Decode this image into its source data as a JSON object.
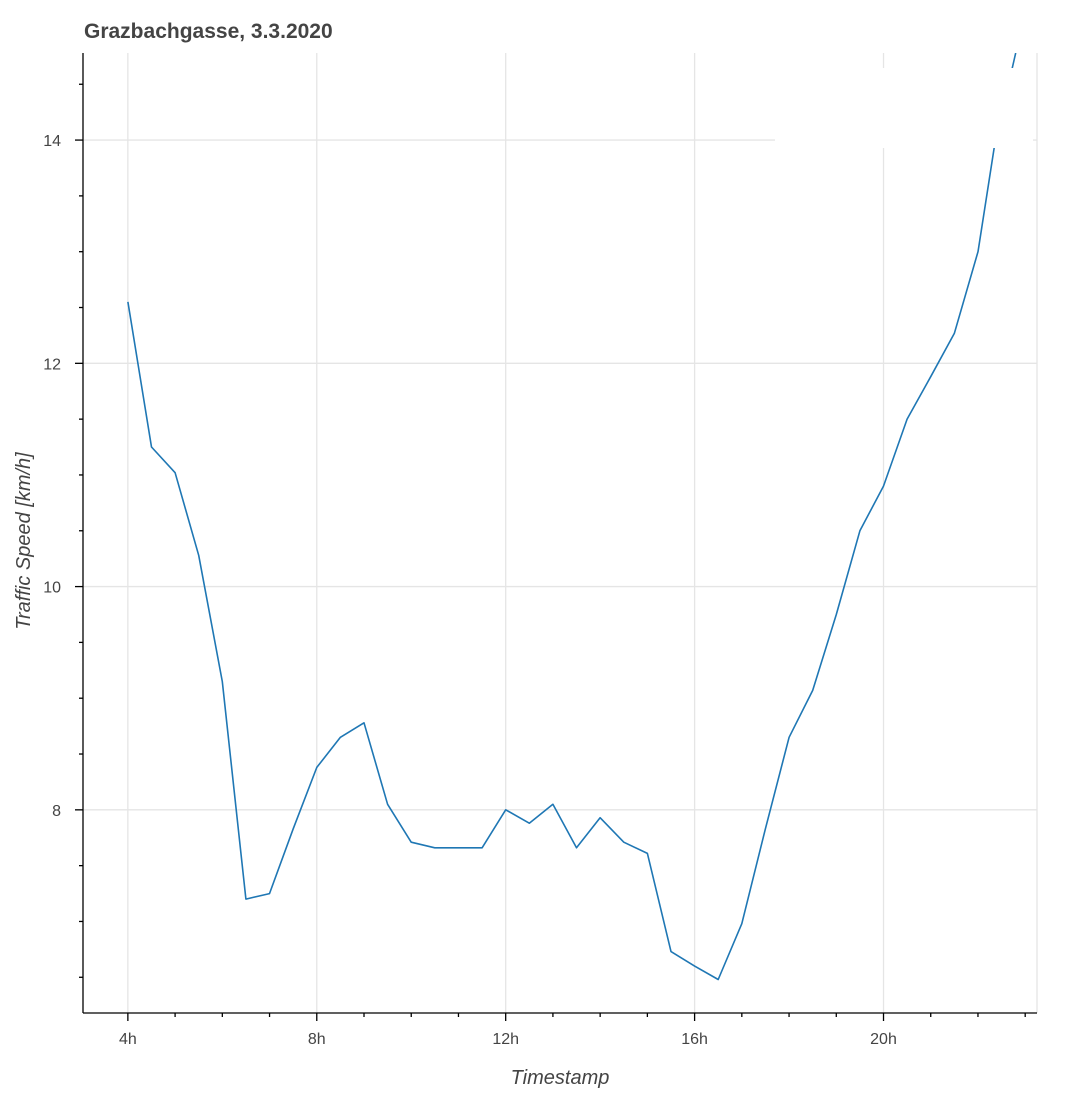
{
  "chart_data": {
    "type": "line",
    "title": "Grazbachgasse, 3.3.2020",
    "xlabel": "Timestamp",
    "ylabel": "Traffic Speed [km/h]",
    "xlim": [
      3.05,
      23.25
    ],
    "ylim": [
      6.18,
      14.78
    ],
    "x_ticks": [
      {
        "value": 4,
        "label": "4h"
      },
      {
        "value": 8,
        "label": "8h"
      },
      {
        "value": 12,
        "label": "12h"
      },
      {
        "value": 16,
        "label": "16h"
      },
      {
        "value": 20,
        "label": "20h"
      }
    ],
    "y_ticks": [
      {
        "value": 8,
        "label": "8"
      },
      {
        "value": 10,
        "label": "10"
      },
      {
        "value": 12,
        "label": "12"
      },
      {
        "value": 14,
        "label": "14"
      }
    ],
    "grid": true,
    "series": [
      {
        "color": "#1f77b4",
        "x": [
          4,
          4.5,
          5,
          5.5,
          6,
          6.5,
          7,
          7.5,
          8,
          8.5,
          9,
          9.5,
          10,
          10.5,
          11,
          11.5,
          12,
          12.5,
          13,
          13.5,
          14,
          14.5,
          15,
          15.5,
          16,
          16.5,
          17,
          17.5,
          18,
          18.5,
          19,
          19.5,
          20,
          20.5,
          21,
          21.5,
          22,
          22.35,
          22.8
        ],
        "y": [
          12.55,
          11.25,
          11.02,
          10.28,
          9.15,
          7.2,
          7.25,
          7.83,
          8.38,
          8.65,
          8.78,
          8.05,
          7.71,
          7.66,
          7.66,
          7.66,
          8.0,
          7.88,
          8.05,
          7.66,
          7.93,
          7.71,
          7.61,
          6.73,
          6.6,
          6.48,
          6.98,
          7.83,
          8.65,
          9.07,
          9.75,
          10.5,
          10.9,
          11.5,
          11.88,
          12.27,
          13.0,
          13.95,
          14.78
        ]
      }
    ]
  }
}
